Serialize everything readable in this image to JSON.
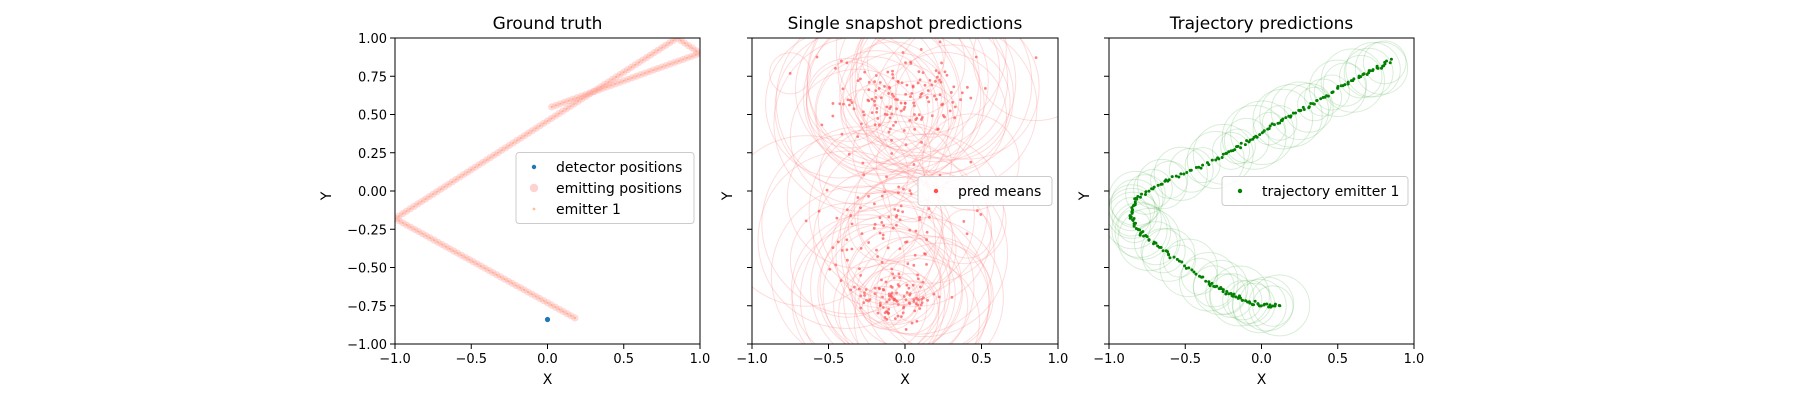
{
  "chart_data": [
    {
      "type": "scatter",
      "title": "Ground truth",
      "xlabel": "X",
      "ylabel": "Y",
      "xlim": [
        -1.0,
        1.0
      ],
      "ylim": [
        -1.0,
        1.0
      ],
      "xticks": [
        "−1.0",
        "−0.5",
        "0.0",
        "0.5",
        "1.0"
      ],
      "yticks": [
        "1.00",
        "0.75",
        "0.50",
        "0.25",
        "0.00",
        "−0.25",
        "−0.50",
        "−0.75",
        "−1.00"
      ],
      "legend_position": "center-right",
      "series": [
        {
          "name": "detector positions",
          "color": "#1f77b4",
          "points": [
            [
              0.0,
              -0.84
            ]
          ]
        },
        {
          "name": "emitting positions",
          "color": "#ff9b9b",
          "path": [
            [
              0.18,
              -0.83
            ],
            [
              -1.0,
              -0.18
            ],
            [
              0.85,
              1.0
            ],
            [
              1.0,
              0.9
            ],
            [
              0.0,
              0.54
            ]
          ]
        },
        {
          "name": "emitter 1",
          "color": "#ffb07a",
          "path": [
            [
              0.18,
              -0.83
            ],
            [
              -1.0,
              -0.18
            ],
            [
              0.85,
              1.0
            ],
            [
              1.0,
              0.9
            ],
            [
              0.0,
              0.54
            ]
          ]
        }
      ]
    },
    {
      "type": "scatter",
      "title": "Single snapshot predictions",
      "xlabel": "X",
      "ylabel": "Y",
      "xlim": [
        -1.0,
        1.0
      ],
      "ylim": [
        -1.0,
        1.0
      ],
      "xticks": [
        "−1.0",
        "−0.5",
        "0.0",
        "0.5",
        "1.0"
      ],
      "legend_position": "center-right",
      "series": [
        {
          "name": "pred means",
          "color": "#ff4d4d",
          "clusters": [
            [
              -0.05,
              -0.7,
              0.3,
              0.18
            ],
            [
              -0.1,
              -0.2,
              0.5,
              0.45
            ],
            [
              0.0,
              0.6,
              0.5,
              0.3
            ]
          ]
        }
      ]
    },
    {
      "type": "line",
      "title": "Trajectory predictions",
      "xlabel": "X",
      "ylabel": "Y",
      "xlim": [
        -1.0,
        1.0
      ],
      "ylim": [
        -1.0,
        1.0
      ],
      "xticks": [
        "−1.0",
        "−0.5",
        "0.0",
        "0.5",
        "1.0"
      ],
      "legend_position": "center-right",
      "series": [
        {
          "name": "trajectory emitter 1",
          "color": "#008000",
          "path": [
            [
              0.12,
              -0.75
            ],
            [
              -0.05,
              -0.74
            ],
            [
              -0.2,
              -0.68
            ],
            [
              -0.35,
              -0.6
            ],
            [
              -0.6,
              -0.42
            ],
            [
              -0.78,
              -0.28
            ],
            [
              -0.86,
              -0.17
            ],
            [
              -0.82,
              -0.05
            ],
            [
              -0.6,
              0.08
            ],
            [
              -0.3,
              0.2
            ],
            [
              -0.1,
              0.32
            ],
            [
              0.1,
              0.44
            ],
            [
              0.3,
              0.55
            ],
            [
              0.5,
              0.67
            ],
            [
              0.7,
              0.77
            ],
            [
              0.86,
              0.86
            ]
          ]
        }
      ]
    }
  ]
}
